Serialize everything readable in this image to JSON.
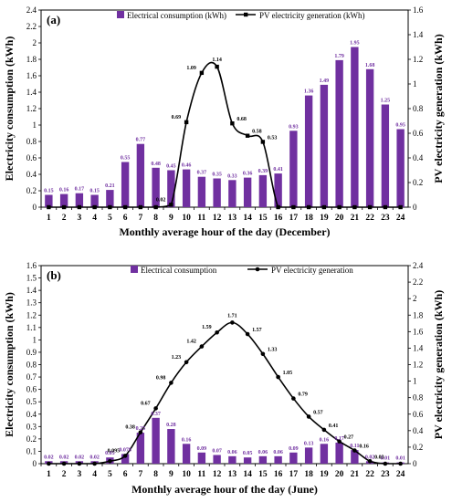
{
  "chart_data": [
    {
      "type": "bar",
      "panel": "(a)",
      "xlabel": "Monthly average hour of the day (December)",
      "ylabel": "Electricity consumption (kWh)",
      "y2label": "PV electricity generation (kWh)",
      "categories": [
        "1",
        "2",
        "3",
        "4",
        "5",
        "6",
        "7",
        "8",
        "9",
        "10",
        "11",
        "12",
        "13",
        "14",
        "15",
        "16",
        "17",
        "18",
        "19",
        "20",
        "21",
        "22",
        "23",
        "24"
      ],
      "ylim": [
        0,
        2.4
      ],
      "y2lim": [
        0,
        1.6
      ],
      "yticks": [
        "0",
        "0.2",
        "0.4",
        "0.6",
        "0.8",
        "1",
        "1.2",
        "1.4",
        "1.6",
        "1.8",
        "2",
        "2.2",
        "2.4"
      ],
      "y2ticks": [
        "0",
        "0.2",
        "0.4",
        "0.6",
        "0.8",
        "1",
        "1.2",
        "1.4",
        "1.6"
      ],
      "legend_position": "top",
      "bar_color": "#7030a0",
      "line_color": "#000000",
      "series": [
        {
          "name": "Electrical consumption (kWh)",
          "axis": "left",
          "values": [
            0.15,
            0.16,
            0.17,
            0.15,
            0.21,
            0.55,
            0.77,
            0.48,
            0.45,
            0.46,
            0.37,
            0.35,
            0.33,
            0.36,
            0.39,
            0.41,
            0.93,
            1.36,
            1.49,
            1.79,
            1.95,
            1.68,
            1.25,
            0.95
          ],
          "labels": [
            "0.15",
            "0.16",
            "0.17",
            "0.15",
            "0.21",
            "0.55",
            "0.77",
            "0.48",
            "0.45",
            "0.46",
            "0.37",
            "0.35",
            "0.33",
            "0.36",
            "0.39",
            "0.41",
            "0.93",
            "1.36",
            "1.49",
            "1.79",
            "1.95",
            "1.68",
            "1.25",
            "0.95"
          ]
        },
        {
          "name": "PV electricity generation (kWh)",
          "axis": "right",
          "values": [
            0,
            0,
            0,
            0,
            0,
            0,
            0,
            0,
            0.02,
            0.69,
            1.09,
            1.14,
            0.68,
            0.58,
            0.53,
            0,
            0,
            0,
            0,
            0,
            0,
            0,
            0,
            0
          ],
          "labels": [
            "",
            "",
            "",
            "",
            "",
            "",
            "",
            "",
            "0.02",
            "0.69",
            "1.09",
            "1.14",
            "0.68",
            "0.58",
            "0.53",
            "",
            "",
            "",
            "",
            "",
            "",
            "",
            "",
            ""
          ]
        }
      ]
    },
    {
      "type": "bar",
      "panel": "(b)",
      "xlabel": "Monthly average hour of the day (June)",
      "ylabel": "Electricity consumption (kWh)",
      "y2label": "PV electricity generation (kWh)",
      "categories": [
        "1",
        "2",
        "3",
        "4",
        "5",
        "6",
        "7",
        "8",
        "9",
        "10",
        "11",
        "12",
        "13",
        "14",
        "15",
        "16",
        "17",
        "18",
        "19",
        "20",
        "21",
        "22",
        "23",
        "24"
      ],
      "ylim": [
        0,
        1.6
      ],
      "y2lim": [
        0,
        2.4
      ],
      "yticks": [
        "0",
        "0.1",
        "0.2",
        "0.3",
        "0.4",
        "0.5",
        "0.6",
        "0.7",
        "0.8",
        "0.9",
        "1",
        "1.1",
        "1.2",
        "1.3",
        "1.4",
        "1.5",
        "1.6"
      ],
      "y2ticks": [
        "0",
        "0.2",
        "0.4",
        "0.6",
        "0.8",
        "1",
        "1.2",
        "1.4",
        "1.6",
        "1.8",
        "2",
        "2.2",
        "2.4"
      ],
      "legend_position": "top",
      "bar_color": "#7030a0",
      "line_color": "#000000",
      "series": [
        {
          "name": "Electrical consumption",
          "axis": "left",
          "values": [
            0.02,
            0.02,
            0.02,
            0.02,
            0.05,
            0.078,
            0.25,
            0.37,
            0.28,
            0.16,
            0.09,
            0.07,
            0.06,
            0.05,
            0.06,
            0.06,
            0.09,
            0.13,
            0.16,
            0.17,
            0.11,
            0.02,
            0.01,
            0.01
          ],
          "labels": [
            "0.02",
            "0.02",
            "0.02",
            "0.02",
            "0.05",
            "0.078",
            "0.25",
            "0.37",
            "0.28",
            "0.16",
            "0.09",
            "0.07",
            "0.06",
            "0.05",
            "0.06",
            "0.06",
            "0.09",
            "0.13",
            "0.16",
            "0.17",
            "0.11",
            "0.02",
            "0.01",
            "0.01"
          ]
        },
        {
          "name": "PV electricity generation",
          "axis": "right",
          "values": [
            0,
            0,
            0,
            0,
            0.03,
            0.095,
            0.38,
            0.67,
            0.98,
            1.23,
            1.42,
            1.59,
            1.71,
            1.57,
            1.33,
            1.05,
            0.79,
            0.57,
            0.41,
            0.27,
            0.16,
            0.03,
            0,
            0
          ],
          "labels": [
            "",
            "",
            "",
            "",
            "",
            "0.095",
            "0.38",
            "0.67",
            "0.98",
            "1.23",
            "1.42",
            "1.59",
            "1.71",
            "1.57",
            "1.33",
            "1.05",
            "0.79",
            "0.57",
            "0.41",
            "0.27",
            "0.16",
            "0.03",
            "",
            ""
          ]
        }
      ]
    }
  ]
}
